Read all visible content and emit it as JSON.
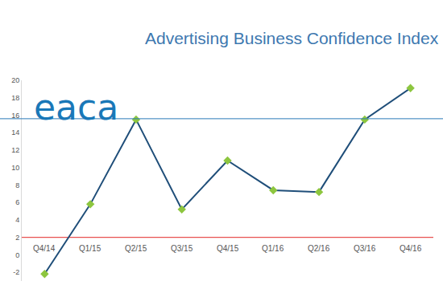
{
  "chart_data": {
    "type": "line",
    "title": "Advertising Business Confidence Index",
    "annotations": [
      {
        "text": "eaca"
      }
    ],
    "categories": [
      "Q4/14",
      "Q1/15",
      "Q2/15",
      "Q3/15",
      "Q4/15",
      "Q1/16",
      "Q2/16",
      "Q3/16",
      "Q4/16"
    ],
    "values": [
      -2.2,
      5.8,
      15.5,
      5.2,
      10.8,
      7.4,
      7.2,
      15.5,
      19.1
    ],
    "color": "#1f4e79",
    "marker": "diamond",
    "threshold": 2,
    "ylim": [
      -3,
      20
    ],
    "yticks": [
      -2,
      0,
      2,
      4,
      6,
      8,
      10,
      12,
      14,
      16,
      18,
      20
    ],
    "grid": false
  }
}
